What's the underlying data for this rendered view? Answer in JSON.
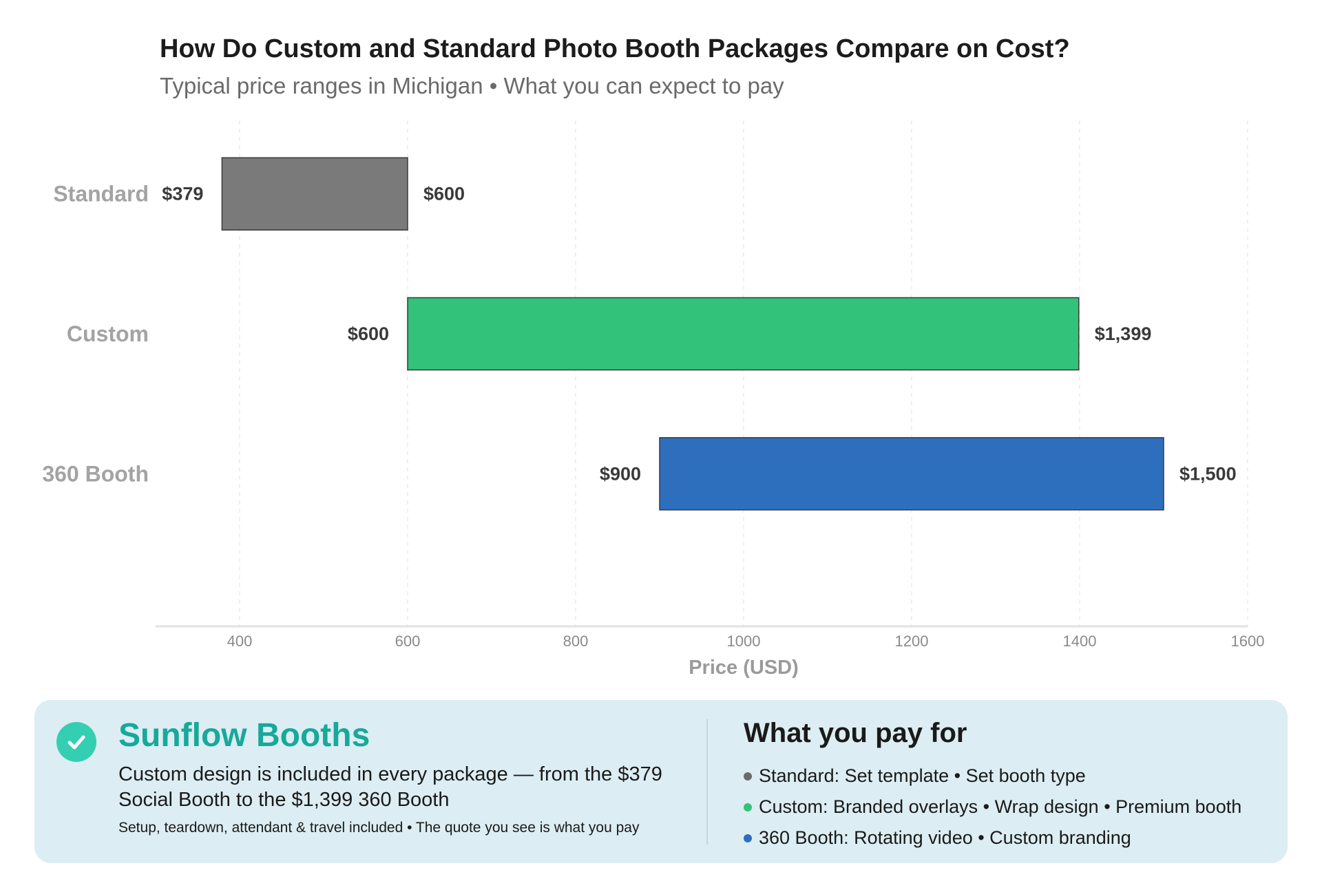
{
  "chart_data": {
    "type": "bar",
    "orientation": "horizontal",
    "style": "range (floating) bars",
    "title": "How Do Custom and Standard Photo Booth Packages Compare on Cost?",
    "subtitle": "Typical price ranges in Michigan • What you can expect to pay",
    "xlabel": "Price (USD)",
    "ylabel": "",
    "xlim": [
      300,
      1600
    ],
    "xticks": [
      400,
      600,
      800,
      1000,
      1200,
      1400,
      1600
    ],
    "grid": "vertical dashed",
    "categories": [
      "Standard",
      "Custom",
      "360 Booth"
    ],
    "series": [
      {
        "category": "Standard",
        "min": 379,
        "max": 600,
        "min_label": "$379",
        "max_label": "$600",
        "color": "#7a7a7a"
      },
      {
        "category": "Custom",
        "min": 600,
        "max": 1399,
        "min_label": "$600",
        "max_label": "$1,399",
        "color": "#33c27a"
      },
      {
        "category": "360 Booth",
        "min": 900,
        "max": 1500,
        "min_label": "$900",
        "max_label": "$1,500",
        "color": "#2e6fbd"
      }
    ]
  },
  "panel": {
    "brand": "Sunflow Booths",
    "description": "Custom design is included in every package — from the $379 Social Booth to the $1,399 360 Booth",
    "note": "Setup, teardown, attendant & travel included • The quote you see is what you pay",
    "pay_title": "What you pay for",
    "items": [
      {
        "text": "Standard: Set template • Set booth type",
        "color": "#6b6b6b"
      },
      {
        "text": "Custom: Branded overlays • Wrap design • Premium booth",
        "color": "#33c27a"
      },
      {
        "text": "360 Booth: Rotating video • Custom branding",
        "color": "#2e6fbd"
      }
    ],
    "icons": {
      "check": "check-circle-icon"
    }
  }
}
